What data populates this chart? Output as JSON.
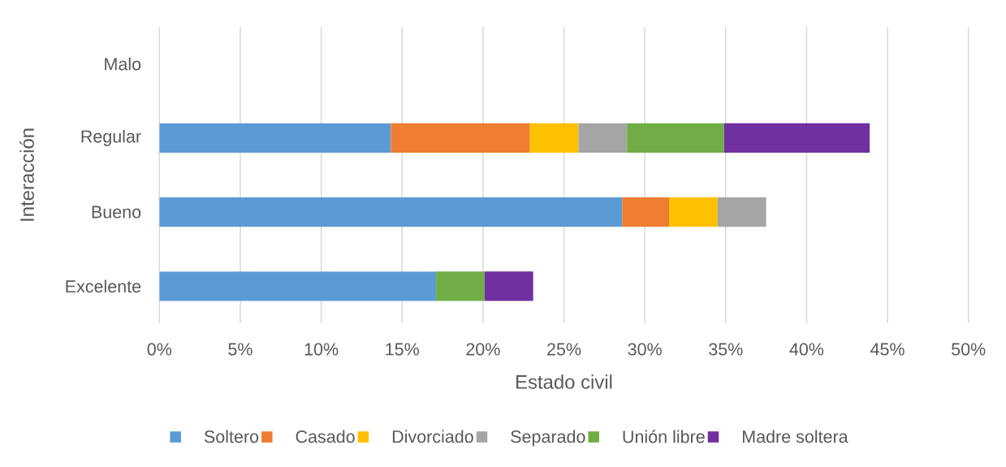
{
  "chart_data": {
    "type": "bar",
    "orientation": "horizontal",
    "stacked": true,
    "xlabel": "Estado civil",
    "ylabel": "Interacción",
    "categories": [
      "Malo",
      "Regular",
      "Bueno",
      "Excelente"
    ],
    "series": [
      {
        "name": "Soltero",
        "color": "#5b9bd5",
        "values": [
          null,
          14.3,
          28.6,
          17.1
        ]
      },
      {
        "name": "Casado",
        "color": "#ed7d31",
        "values": [
          null,
          8.6,
          2.9,
          null
        ]
      },
      {
        "name": "Divorciado",
        "color": "#ffc000",
        "values": [
          null,
          3.0,
          3.0,
          null
        ]
      },
      {
        "name": "Separado",
        "color": "#a5a5a5",
        "values": [
          null,
          3.0,
          3.0,
          null
        ]
      },
      {
        "name": "Unión libre",
        "color": "#70ad47",
        "values": [
          null,
          6.0,
          null,
          3.0
        ]
      },
      {
        "name": "Madre soltera",
        "color": "#7030a0",
        "values": [
          null,
          9.0,
          null,
          3.0
        ]
      }
    ],
    "xlim": [
      0,
      50
    ],
    "xticks": [
      {
        "value": 0,
        "label": "0%"
      },
      {
        "value": 5,
        "label": "5%"
      },
      {
        "value": 10,
        "label": "10%"
      },
      {
        "value": 15,
        "label": "15%"
      },
      {
        "value": 20,
        "label": "20%"
      },
      {
        "value": 25,
        "label": "25%"
      },
      {
        "value": 30,
        "label": "30%"
      },
      {
        "value": 35,
        "label": "35%"
      },
      {
        "value": 40,
        "label": "40%"
      },
      {
        "value": 45,
        "label": "45%"
      },
      {
        "value": 50,
        "label": "50%"
      }
    ],
    "grid": "x",
    "legend": "bottom"
  }
}
